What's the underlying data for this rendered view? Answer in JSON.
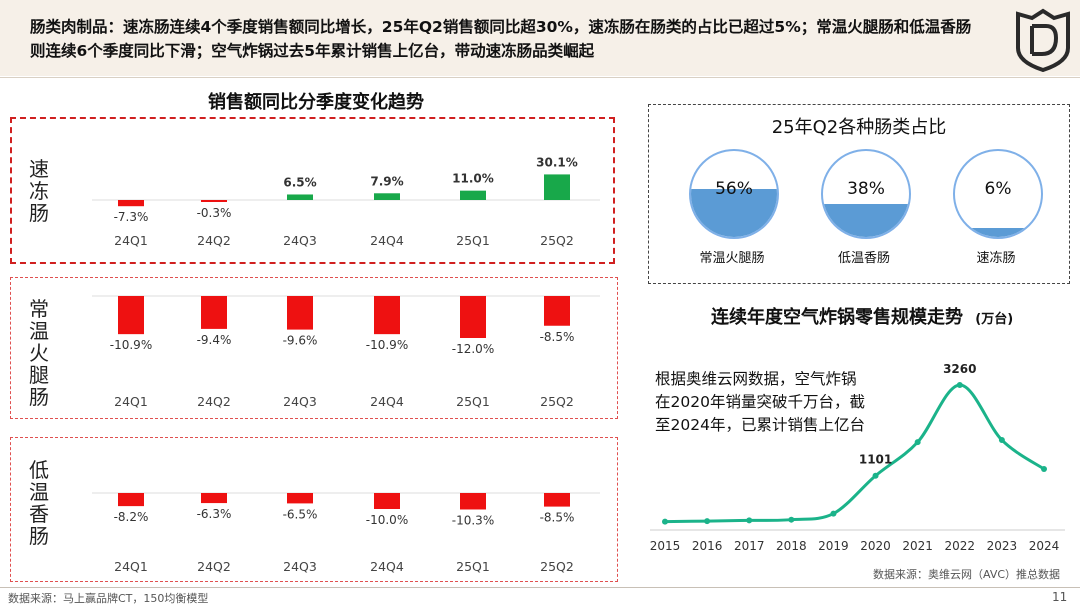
{
  "header": {
    "text": "肠类肉制品：速冻肠连续4个季度销售额同比增长，25年Q2销售额同比超30%，速冻肠在肠类的占比已超过5%；常温火腿肠和低温香肠则连续6个季度同比下滑；空气炸锅过去5年累计销售上亿台，带动速冻肠品类崛起"
  },
  "left_section": {
    "title": "销售额同比分季度变化趋势"
  },
  "right_pie_section": {
    "title": "25年Q2各种肠类占比"
  },
  "right_line_section": {
    "title": "连续年度空气炸锅零售规模走势",
    "unit": "(万台)"
  },
  "annotation": "根据奥维云网数据，空气炸锅在2020年销量突破千万台，截至2024年，已累计销售上亿台",
  "avc_source": "数据来源：奥维云网（AVC）推总数据",
  "footer": {
    "source": "数据来源：马上赢品牌CT，150均衡模型",
    "page": "11"
  },
  "colors": {
    "positive": "#18a84a",
    "negative": "#ee1111",
    "line": "#1bb38a",
    "cup_fill": "#5b9bd5",
    "header_bg": "#f6f0e8"
  },
  "chart_data": [
    {
      "type": "bar",
      "group_label": "速冻肠",
      "categories": [
        "24Q1",
        "24Q2",
        "24Q3",
        "24Q4",
        "25Q1",
        "25Q2"
      ],
      "values": [
        -7.3,
        -0.3,
        6.5,
        7.9,
        11.0,
        30.1
      ],
      "value_labels": [
        "-7.3%",
        "-0.3%",
        "6.5%",
        "7.9%",
        "11.0%",
        "30.1%"
      ]
    },
    {
      "type": "bar",
      "group_label": "常温火腿肠",
      "categories": [
        "24Q1",
        "24Q2",
        "24Q3",
        "24Q4",
        "25Q1",
        "25Q2"
      ],
      "values": [
        -10.9,
        -9.4,
        -9.6,
        -10.9,
        -12.0,
        -8.5
      ],
      "value_labels": [
        "-10.9%",
        "-9.4%",
        "-9.6%",
        "-10.9%",
        "-12.0%",
        "-8.5%"
      ]
    },
    {
      "type": "bar",
      "group_label": "低温香肠",
      "categories": [
        "24Q1",
        "24Q2",
        "24Q3",
        "24Q4",
        "25Q1",
        "25Q2"
      ],
      "values": [
        -8.2,
        -6.3,
        -6.5,
        -10.0,
        -10.3,
        -8.5
      ],
      "value_labels": [
        "-8.2%",
        "-6.3%",
        "-6.5%",
        "-10.0%",
        "-10.3%",
        "-8.5%"
      ]
    },
    {
      "type": "pie",
      "title": "25年Q2各种肠类占比",
      "slices": [
        {
          "label": "常温火腿肠",
          "value": 56,
          "text": "56%"
        },
        {
          "label": "低温香肠",
          "value": 38,
          "text": "38%"
        },
        {
          "label": "速冻肠",
          "value": 6,
          "text": "6%"
        }
      ]
    },
    {
      "type": "line",
      "title": "连续年度空气炸锅零售规模走势",
      "unit": "(万台)",
      "x": [
        "2015",
        "2016",
        "2017",
        "2018",
        "2019",
        "2020",
        "2021",
        "2022",
        "2023",
        "2024"
      ],
      "y": [
        10,
        22,
        38,
        55,
        200,
        1101,
        1900,
        3260,
        1950,
        1260
      ],
      "labeled_points": [
        {
          "x": "2020",
          "text": "1101"
        },
        {
          "x": "2022",
          "text": "3260"
        }
      ],
      "ylim": [
        0,
        3400
      ]
    }
  ]
}
